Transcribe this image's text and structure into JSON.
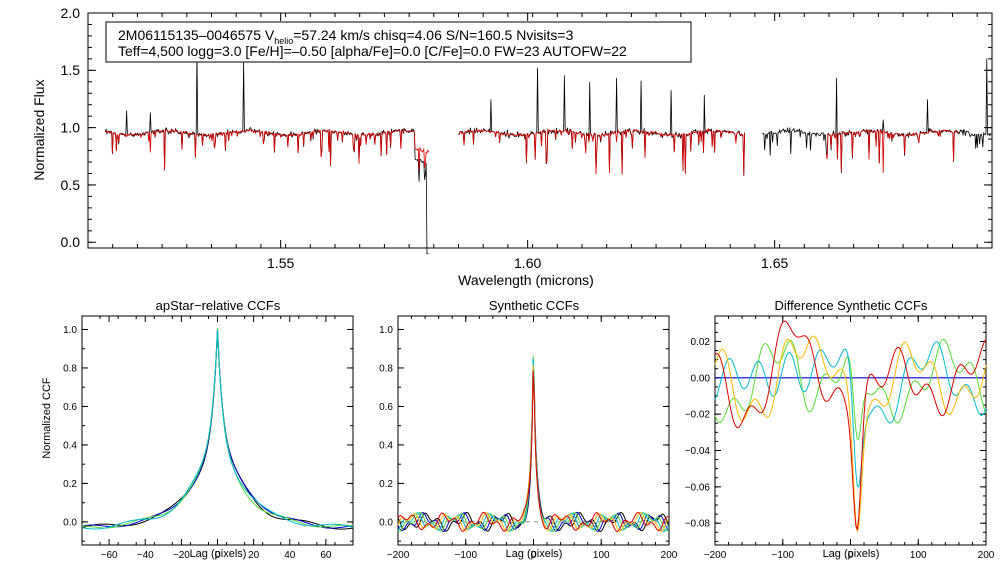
{
  "chart_data": [
    {
      "id": "spectrum",
      "type": "line",
      "title": "",
      "xlabel": "Wavelength (microns)",
      "ylabel": "Normalized Flux",
      "xlim": [
        1.511,
        1.694
      ],
      "ylim": [
        -0.05,
        2.0
      ],
      "xticks": [
        1.55,
        1.6,
        1.65
      ],
      "xtick_labels": [
        "1.55",
        "1.60",
        "1.65"
      ],
      "yticks": [
        0.0,
        0.5,
        1.0,
        1.5,
        2.0
      ],
      "ytick_labels": [
        "0.0",
        "0.5",
        "1.0",
        "1.5",
        "2.0"
      ],
      "chips": [
        [
          1.5145,
          1.58
        ],
        [
          1.586,
          1.644
        ],
        [
          1.6475,
          1.694
        ]
      ],
      "series": [
        {
          "name": "observed",
          "color": "#000000"
        },
        {
          "name": "model",
          "color": "#dd0000"
        }
      ],
      "annotation": {
        "line1_prefix": "2M06115135–0046575  V",
        "line1_sub": "helio",
        "line1_suffix": "=57.24 km/s  chisq=4.06  S/N=160.5  Nvisits=3",
        "line2": "Teff=4,500 logg=3.0 [Fe/H]=–0.50 [alpha/Fe]=0.0 [C/Fe]=0.0 FW=23 AUTOFW=22"
      }
    },
    {
      "id": "apstar-ccf",
      "type": "line",
      "title": "apStar−relative CCFs",
      "xlabel": "Lag (pixels)",
      "ylabel": "Normalized CCF",
      "xlim": [
        -75,
        75
      ],
      "ylim": [
        -0.12,
        1.07
      ],
      "xticks": [
        -60,
        -40,
        -20,
        0,
        20,
        40,
        60
      ],
      "xtick_labels": [
        "−60",
        "−40",
        "−20",
        "0",
        "20",
        "40",
        "60"
      ],
      "yticks": [
        0.0,
        0.2,
        0.4,
        0.6,
        0.8,
        1.0
      ],
      "ytick_labels": [
        "0.0",
        "0.2",
        "0.4",
        "0.6",
        "0.8",
        "1.0"
      ],
      "series": [
        {
          "name": "combined",
          "color": "#000000"
        },
        {
          "name": "visit1",
          "color": "#0000cc"
        },
        {
          "name": "visit2",
          "color": "#55dd33"
        },
        {
          "name": "visit3",
          "color": "#00bbcc"
        }
      ]
    },
    {
      "id": "synthetic-ccf",
      "type": "line",
      "title": "Synthetic CCFs",
      "xlabel": "Lag (pixels)",
      "ylabel": "",
      "xlim": [
        -200,
        200
      ],
      "ylim": [
        -0.12,
        1.07
      ],
      "xticks": [
        -200,
        -100,
        0,
        100,
        200
      ],
      "xtick_labels": [
        "−200",
        "−100",
        "0",
        "100",
        "200"
      ],
      "yticks": [
        0.0,
        0.2,
        0.4,
        0.6,
        0.8,
        1.0
      ],
      "ytick_labels": [
        "0.0",
        "0.2",
        "0.4",
        "0.6",
        "0.8",
        "1.0"
      ],
      "zero_line": true,
      "series": [
        {
          "name": "combined",
          "color": "#000000"
        },
        {
          "name": "s1",
          "color": "#0000cc"
        },
        {
          "name": "s2",
          "color": "#55dd33"
        },
        {
          "name": "s3",
          "color": "#00bbcc"
        },
        {
          "name": "s4",
          "color": "#ffbb00"
        },
        {
          "name": "s5",
          "color": "#dd0000"
        }
      ]
    },
    {
      "id": "difference-ccf",
      "type": "line",
      "title": "Difference Synthetic CCFs",
      "xlabel": "Lag (pixels)",
      "ylabel": "",
      "xlim": [
        -200,
        200
      ],
      "ylim": [
        -0.092,
        0.034
      ],
      "xticks": [
        -200,
        -100,
        0,
        100,
        200
      ],
      "xtick_labels": [
        "−200",
        "−100",
        "0",
        "100",
        "200"
      ],
      "yticks": [
        -0.08,
        -0.06,
        -0.04,
        -0.02,
        0.0,
        0.02
      ],
      "ytick_labels": [
        "−0.08",
        "−0.06",
        "−0.04",
        "−0.02",
        "0.00",
        "0.02"
      ],
      "series": [
        {
          "name": "zero",
          "color": "#0000cc"
        },
        {
          "name": "d1",
          "color": "#55dd33"
        },
        {
          "name": "d2",
          "color": "#00bbcc"
        },
        {
          "name": "d3",
          "color": "#ffbb00"
        },
        {
          "name": "d4",
          "color": "#dd0000"
        }
      ]
    }
  ]
}
